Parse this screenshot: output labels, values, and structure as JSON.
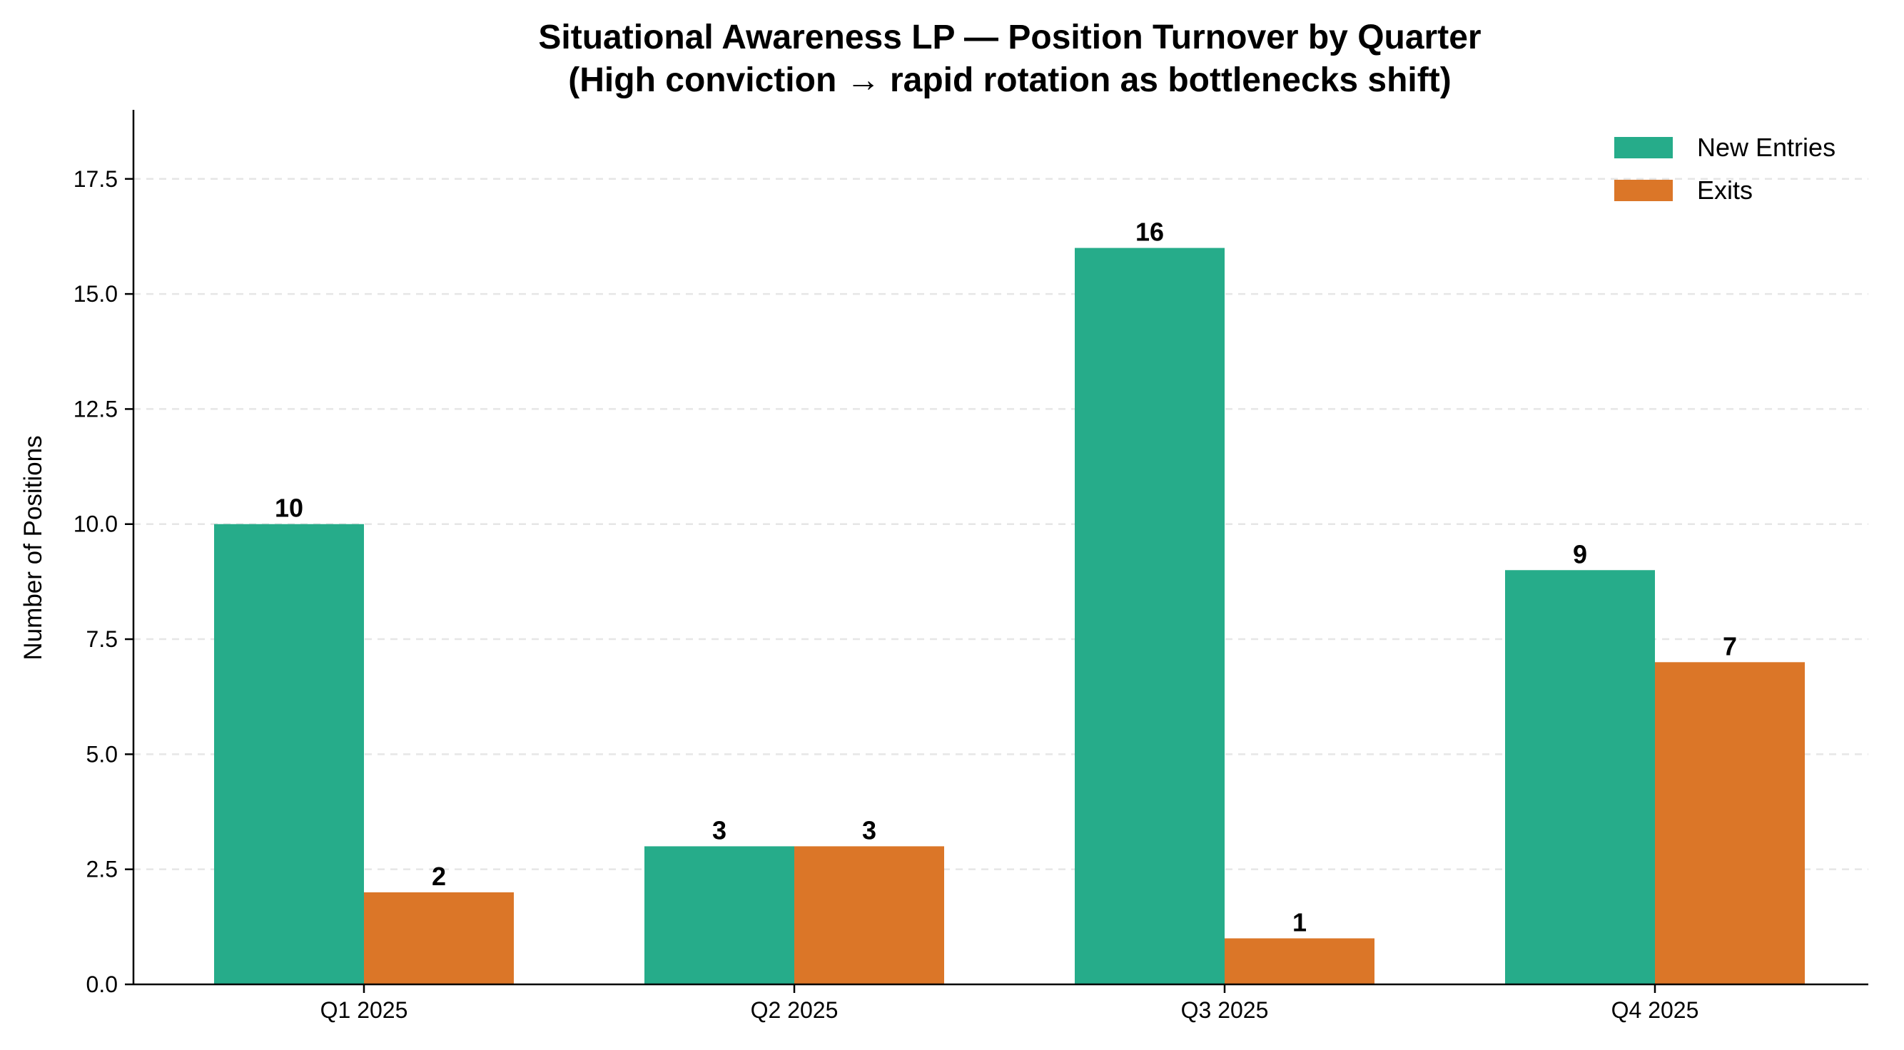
{
  "chart_data": {
    "type": "bar",
    "title_line1": "Situational Awareness LP — Position Turnover by Quarter",
    "title_line2": "(High conviction → rapid rotation as bottlenecks shift)",
    "xlabel": "",
    "ylabel": "Number of Positions",
    "categories": [
      "Q1 2025",
      "Q2 2025",
      "Q3 2025",
      "Q4 2025"
    ],
    "series": [
      {
        "name": "New Entries",
        "values": [
          10,
          3,
          16,
          9
        ],
        "color": "#26ac8a"
      },
      {
        "name": "Exits",
        "values": [
          2,
          3,
          1,
          7
        ],
        "color": "#db7628"
      }
    ],
    "ylim": [
      0,
      19
    ],
    "yticks": [
      0.0,
      2.5,
      5.0,
      7.5,
      10.0,
      12.5,
      15.0,
      17.5
    ],
    "ytick_labels": [
      "0.0",
      "2.5",
      "5.0",
      "7.5",
      "10.0",
      "12.5",
      "15.0",
      "17.5"
    ],
    "grid": "y-dashed",
    "legend_position": "top-right"
  }
}
